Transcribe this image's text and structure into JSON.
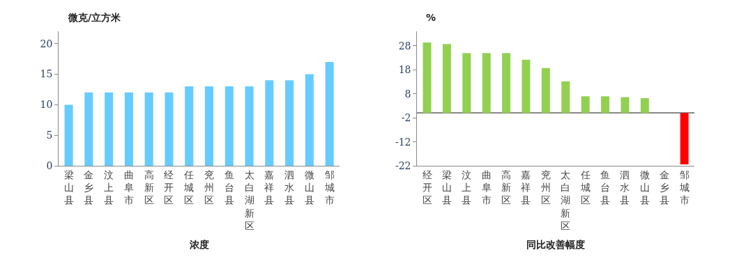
{
  "chart_data": [
    {
      "type": "bar",
      "xlabel": "浓度",
      "ylabel": "微克/立方米",
      "categories": [
        "梁山县",
        "金乡县",
        "汶上县",
        "曲阜市",
        "高新区",
        "经开区",
        "任城区",
        "兖州区",
        "鱼台县",
        "太白湖新区",
        "嘉祥县",
        "泗水县",
        "微山县",
        "邹城市"
      ],
      "values": [
        10,
        12,
        12,
        12,
        12,
        12,
        13,
        13,
        13,
        13,
        14,
        14,
        15,
        17
      ],
      "color": "#66ccff",
      "ylim": [
        0,
        22
      ],
      "yticks": [
        0,
        5,
        10,
        15,
        20
      ]
    },
    {
      "type": "bar",
      "xlabel": "同比改善幅度",
      "ylabel": "%",
      "categories": [
        "经开区",
        "梁山县",
        "汶上县",
        "曲阜市",
        "高新区",
        "嘉祥县",
        "兖州区",
        "太白湖新区",
        "任城区",
        "鱼台县",
        "泗水县",
        "微山县",
        "金乡县",
        "邹城市"
      ],
      "values": [
        29.4,
        28.7,
        25.0,
        25.0,
        25.0,
        22.2,
        18.7,
        13.2,
        7.0,
        7.0,
        6.6,
        6.2,
        0,
        -21.4
      ],
      "colors": [
        "#92d050",
        "#92d050",
        "#92d050",
        "#92d050",
        "#92d050",
        "#92d050",
        "#92d050",
        "#92d050",
        "#92d050",
        "#92d050",
        "#92d050",
        "#92d050",
        "#92d050",
        "#ff0000"
      ],
      "ylim": [
        -22,
        34
      ],
      "yticks": [
        -22,
        -12,
        -2,
        8,
        18,
        28
      ]
    }
  ]
}
